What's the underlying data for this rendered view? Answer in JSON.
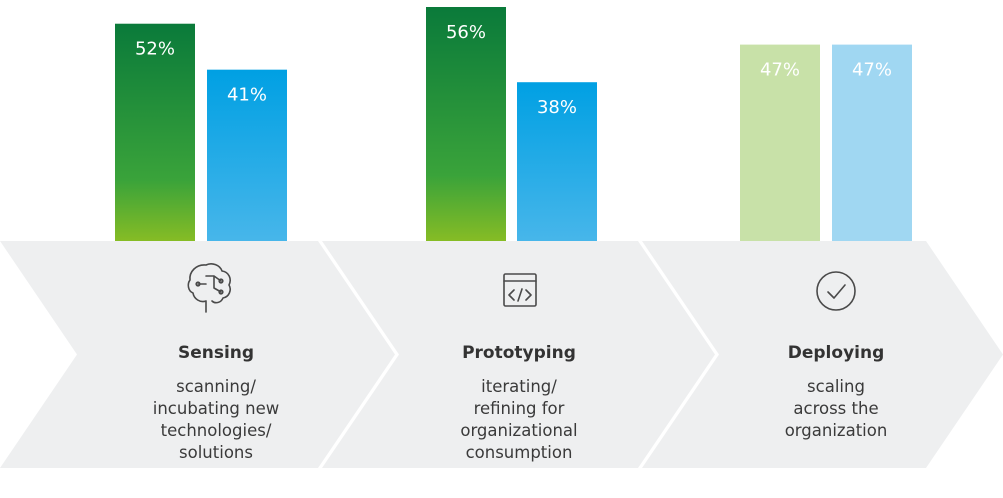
{
  "chart_data": {
    "type": "bar",
    "categories": [
      "Sensing",
      "Prototyping",
      "Deploying"
    ],
    "series": [
      {
        "values": [
          52,
          56,
          47
        ],
        "labels": [
          "52%",
          "56%",
          "47%"
        ]
      },
      {
        "values": [
          41,
          38,
          47
        ],
        "labels": [
          "41%",
          "38%",
          "47%"
        ]
      }
    ],
    "ylim": [
      0,
      56
    ],
    "grid": false,
    "muted_categories": [
      "Deploying"
    ]
  },
  "stages": [
    {
      "title": "Sensing",
      "desc": [
        "scanning/",
        "incubating new",
        "technologies/",
        "solutions"
      ],
      "icon": "brain-icon"
    },
    {
      "title": "Prototyping",
      "desc": [
        "iterating/",
        "refining for",
        "organizational",
        "consumption"
      ],
      "icon": "code-window-icon"
    },
    {
      "title": "Deploying",
      "desc": [
        "scaling",
        "across the",
        "organization"
      ],
      "icon": "checkmark-circle-icon"
    }
  ],
  "colors": {
    "green_top": "#0a7a3a",
    "green_bottom": "#86bc25",
    "blue_top": "#00a0e3",
    "blue_bottom": "#47b6ea",
    "green_muted": "#c8e1a8",
    "blue_muted": "#a0d7f2",
    "chevron": "#eeeff0"
  }
}
